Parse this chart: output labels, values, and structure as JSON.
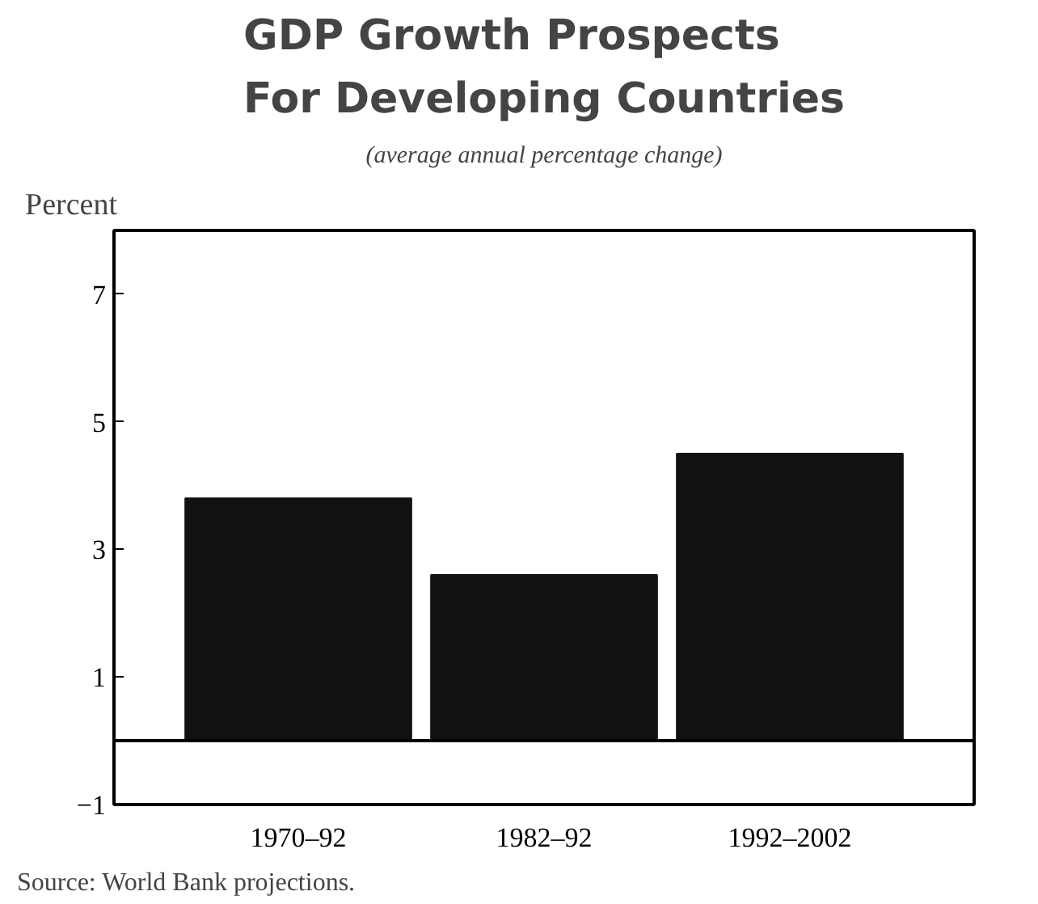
{
  "chart_data": {
    "type": "bar",
    "title": "GDP Growth Prospects\nFor Developing Countries",
    "subtitle": "(average annual percentage change)",
    "ylabel": "Percent",
    "categories": [
      "1970–92",
      "1982–92",
      "1992–2002"
    ],
    "values": [
      3.8,
      2.6,
      4.5
    ],
    "color": "#111111",
    "ylim": [
      -1,
      8
    ],
    "yticks": [
      -1,
      1,
      3,
      5,
      7
    ],
    "grid": false,
    "ref_lines": [
      {
        "axis": "y",
        "value": 0,
        "color": "#000000"
      }
    ],
    "annotations": [
      "Source: World Bank projections."
    ]
  }
}
